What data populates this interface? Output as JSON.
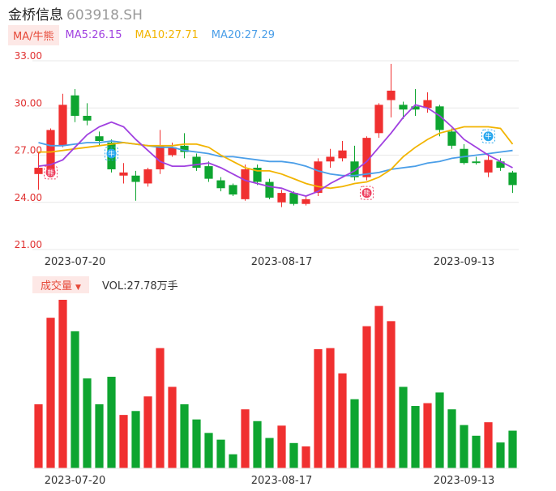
{
  "header": {
    "name": "金桥信息",
    "code": "603918.SH"
  },
  "ma": {
    "tag": "MA/牛熊",
    "ma5_label": "MA5:26.15",
    "ma10_label": "MA10:27.71",
    "ma20_label": "MA20:27.29",
    "colors": {
      "ma5": "#a040e0",
      "ma10": "#f2b400",
      "ma20": "#4a9ee8"
    }
  },
  "volume": {
    "tag": "成交量",
    "caret": "▼",
    "label": "VOL:27.78万手"
  },
  "markers": {
    "bull": "牛",
    "bear": "熊"
  },
  "colors": {
    "up": "#f03030",
    "down": "#0ea530",
    "grid": "#e8e8e8",
    "axis_text": "#e03030"
  },
  "chart_data": [
    {
      "type": "candlestick",
      "ylim": [
        21.0,
        33.0
      ],
      "yticks": [
        "33.00",
        "30.00",
        "27.00",
        "24.00",
        "21.00"
      ],
      "xticks": [
        "2023-07-20",
        "2023-08-17",
        "2023-09-13"
      ],
      "candles": [
        {
          "o": 25.8,
          "c": 26.2,
          "h": 27.2,
          "l": 24.8
        },
        {
          "o": 25.8,
          "c": 28.6,
          "h": 28.7,
          "l": 25.7
        },
        {
          "o": 27.6,
          "c": 30.2,
          "h": 30.9,
          "l": 27.5
        },
        {
          "o": 30.8,
          "c": 29.5,
          "h": 31.2,
          "l": 29.1
        },
        {
          "o": 29.5,
          "c": 29.2,
          "h": 30.3,
          "l": 28.9
        },
        {
          "o": 28.2,
          "c": 27.9,
          "h": 28.5,
          "l": 27.6
        },
        {
          "o": 27.8,
          "c": 26.1,
          "h": 28.0,
          "l": 25.9
        },
        {
          "o": 25.7,
          "c": 25.9,
          "h": 26.5,
          "l": 25.2
        },
        {
          "o": 25.7,
          "c": 25.3,
          "h": 26.0,
          "l": 24.1
        },
        {
          "o": 25.2,
          "c": 26.1,
          "h": 26.2,
          "l": 25.0
        },
        {
          "o": 26.1,
          "c": 27.6,
          "h": 28.6,
          "l": 25.8
        },
        {
          "o": 27.0,
          "c": 27.5,
          "h": 27.8,
          "l": 26.9
        },
        {
          "o": 27.6,
          "c": 27.2,
          "h": 28.4,
          "l": 26.8
        },
        {
          "o": 26.9,
          "c": 26.2,
          "h": 27.1,
          "l": 26.0
        },
        {
          "o": 26.3,
          "c": 25.5,
          "h": 26.6,
          "l": 25.3
        },
        {
          "o": 25.4,
          "c": 24.9,
          "h": 25.6,
          "l": 24.7
        },
        {
          "o": 25.1,
          "c": 24.5,
          "h": 25.2,
          "l": 24.4
        },
        {
          "o": 24.2,
          "c": 26.1,
          "h": 26.4,
          "l": 24.1
        },
        {
          "o": 26.2,
          "c": 25.3,
          "h": 26.4,
          "l": 25.1
        },
        {
          "o": 25.3,
          "c": 24.3,
          "h": 25.5,
          "l": 24.2
        },
        {
          "o": 24.0,
          "c": 24.6,
          "h": 24.8,
          "l": 23.7
        },
        {
          "o": 24.6,
          "c": 23.9,
          "h": 24.7,
          "l": 23.8
        },
        {
          "o": 23.9,
          "c": 24.2,
          "h": 24.4,
          "l": 23.8
        },
        {
          "o": 24.6,
          "c": 26.6,
          "h": 26.8,
          "l": 24.4
        },
        {
          "o": 26.6,
          "c": 26.9,
          "h": 27.4,
          "l": 26.2
        },
        {
          "o": 26.8,
          "c": 27.3,
          "h": 27.9,
          "l": 26.6
        },
        {
          "o": 26.6,
          "c": 25.6,
          "h": 27.6,
          "l": 25.4
        },
        {
          "o": 25.6,
          "c": 28.1,
          "h": 28.2,
          "l": 25.4
        },
        {
          "o": 28.4,
          "c": 30.2,
          "h": 30.3,
          "l": 28.1
        },
        {
          "o": 30.5,
          "c": 31.1,
          "h": 32.8,
          "l": 29.4
        },
        {
          "o": 30.2,
          "c": 29.9,
          "h": 30.4,
          "l": 29.3
        },
        {
          "o": 30.1,
          "c": 29.9,
          "h": 31.2,
          "l": 29.5
        },
        {
          "o": 30.0,
          "c": 30.5,
          "h": 31.0,
          "l": 29.7
        },
        {
          "o": 30.1,
          "c": 28.6,
          "h": 30.2,
          "l": 28.2
        },
        {
          "o": 28.5,
          "c": 27.6,
          "h": 28.7,
          "l": 27.4
        },
        {
          "o": 27.4,
          "c": 26.5,
          "h": 27.7,
          "l": 26.4
        },
        {
          "o": 26.6,
          "c": 26.5,
          "h": 26.9,
          "l": 26.4
        },
        {
          "o": 25.9,
          "c": 26.7,
          "h": 27.1,
          "l": 25.6
        },
        {
          "o": 26.6,
          "c": 26.2,
          "h": 26.8,
          "l": 26.0
        },
        {
          "o": 25.9,
          "c": 25.1,
          "h": 26.0,
          "l": 24.6
        }
      ],
      "ma5": [
        26.3,
        26.4,
        26.7,
        27.5,
        28.3,
        28.8,
        29.1,
        28.8,
        28.0,
        27.3,
        26.6,
        26.3,
        26.3,
        26.4,
        26.5,
        26.2,
        25.8,
        25.4,
        25.2,
        25.0,
        24.9,
        24.6,
        24.4,
        24.7,
        25.2,
        25.6,
        26.0,
        26.6,
        27.5,
        28.4,
        29.4,
        30.2,
        30.0,
        29.5,
        28.8,
        28.0,
        27.5,
        27.0,
        26.6,
        26.2
      ],
      "ma10": [
        27.2,
        27.2,
        27.3,
        27.4,
        27.5,
        27.6,
        27.7,
        27.8,
        27.7,
        27.6,
        27.6,
        27.6,
        27.7,
        27.7,
        27.5,
        27.0,
        26.6,
        26.2,
        26.0,
        26.0,
        25.8,
        25.5,
        25.2,
        25.0,
        24.9,
        25.0,
        25.2,
        25.3,
        25.6,
        26.1,
        26.9,
        27.5,
        28.0,
        28.4,
        28.6,
        28.8,
        28.8,
        28.8,
        28.7,
        27.7
      ],
      "ma20": [
        27.8,
        27.6,
        27.6,
        27.7,
        27.8,
        27.8,
        27.9,
        27.8,
        27.7,
        27.6,
        27.5,
        27.5,
        27.3,
        27.2,
        27.1,
        26.9,
        26.9,
        26.8,
        26.7,
        26.6,
        26.6,
        26.5,
        26.3,
        26.0,
        25.8,
        25.7,
        25.7,
        25.8,
        25.9,
        26.1,
        26.2,
        26.3,
        26.5,
        26.6,
        26.8,
        26.9,
        27.0,
        27.1,
        27.2,
        27.3
      ],
      "markers": [
        {
          "index": 1,
          "kind": "bear",
          "value": 25.9
        },
        {
          "index": 6,
          "kind": "bull",
          "value": 27.1
        },
        {
          "index": 27,
          "kind": "bear",
          "value": 24.6
        },
        {
          "index": 37,
          "kind": "bull",
          "value": 28.2
        }
      ]
    },
    {
      "type": "bar",
      "title": "成交量",
      "xticks": [
        "2023-07-20",
        "2023-08-17",
        "2023-09-13"
      ],
      "values": [
        11.4,
        26.8,
        30.0,
        24.4,
        16.0,
        11.4,
        16.3,
        9.5,
        10.2,
        12.8,
        21.4,
        14.5,
        11.4,
        8.7,
        6.3,
        5.1,
        2.5,
        10.5,
        8.4,
        5.4,
        7.6,
        4.5,
        3.9,
        21.2,
        21.4,
        16.9,
        12.3,
        25.3,
        28.9,
        26.2,
        14.5,
        11.1,
        11.6,
        13.5,
        10.5,
        7.7,
        5.8,
        8.2,
        4.6,
        6.7
      ]
    }
  ]
}
